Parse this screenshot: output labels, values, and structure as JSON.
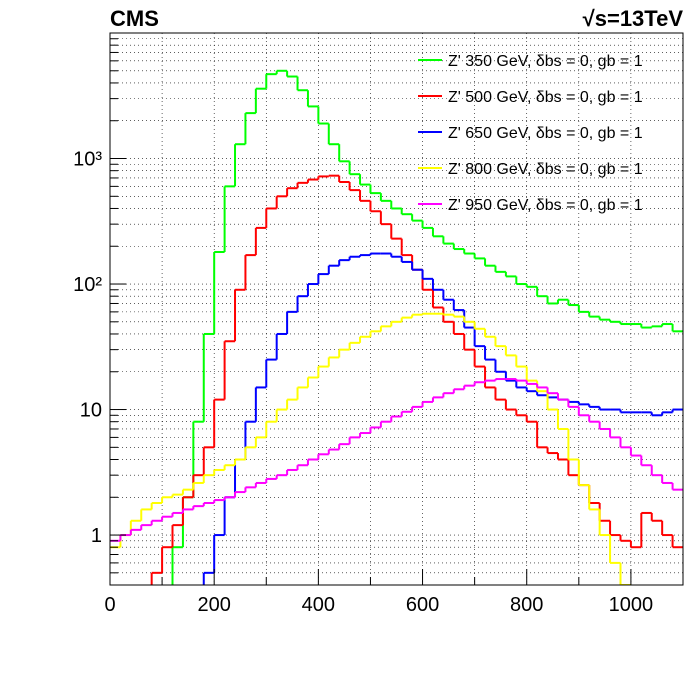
{
  "chart_data": {
    "type": "histogram",
    "title": "CMS",
    "subtitle": "√s=13TeV",
    "log_y": true,
    "grid": true,
    "legend": "upper right",
    "bins": [
      0,
      20,
      40,
      60,
      80,
      100,
      120,
      140,
      160,
      180,
      200,
      220,
      240,
      260,
      280,
      300,
      320,
      340,
      360,
      380,
      400,
      420,
      440,
      460,
      480,
      500,
      520,
      540,
      560,
      580,
      600,
      620,
      640,
      660,
      680,
      700,
      720,
      740,
      760,
      780,
      800,
      820,
      840,
      860,
      880,
      900,
      920,
      940,
      960,
      980,
      1000,
      1020,
      1040,
      1060,
      1080,
      1100
    ],
    "xlim": [
      0,
      1100
    ],
    "xticks": [
      0,
      200,
      400,
      600,
      800,
      1000
    ],
    "xminor_ticks": [
      100,
      300,
      500,
      700,
      900,
      1100
    ],
    "ylim": [
      0.4,
      10000
    ],
    "yticks": [
      1,
      10,
      {
        "value": 100,
        "label": "10²"
      },
      {
        "value": 1000,
        "label": "10³"
      }
    ],
    "yminor_ticks": [
      0.4,
      0.5,
      0.6,
      0.7,
      0.8,
      0.9,
      2,
      3,
      4,
      5,
      6,
      7,
      8,
      9,
      20,
      30,
      40,
      50,
      60,
      70,
      80,
      90,
      200,
      300,
      400,
      500,
      600,
      700,
      800,
      900,
      2000,
      3000,
      4000,
      5000,
      6000,
      7000,
      8000,
      9000
    ],
    "series": [
      {
        "name": "Z' 350 GeV, δbs = 0, gb = 1",
        "color": "#00ff00",
        "values": [
          0,
          0,
          0,
          0,
          0,
          0,
          0.8,
          2,
          8,
          40,
          180,
          600,
          1300,
          2300,
          3600,
          4700,
          5000,
          4500,
          3500,
          2600,
          1900,
          1300,
          950,
          750,
          620,
          530,
          460,
          400,
          360,
          320,
          280,
          240,
          210,
          190,
          175,
          160,
          140,
          125,
          115,
          100,
          95,
          80,
          70,
          75,
          68,
          60,
          55,
          52,
          50,
          48,
          48,
          45,
          46,
          48,
          42
        ]
      },
      {
        "name": "Z' 500 GeV, δbs = 0, gb = 1",
        "color": "#ff0000",
        "values": [
          0,
          0,
          0,
          0,
          0.5,
          0.8,
          1.2,
          2,
          3,
          5,
          12,
          35,
          90,
          170,
          280,
          400,
          500,
          580,
          640,
          680,
          720,
          730,
          650,
          560,
          460,
          380,
          300,
          230,
          170,
          130,
          90,
          65,
          50,
          40,
          30,
          22,
          15,
          12,
          10,
          9,
          8,
          5,
          4.5,
          4,
          3,
          2.5,
          1.8,
          1.3,
          1,
          0.9,
          0.8,
          1.5,
          1.3,
          1,
          0.8
        ]
      },
      {
        "name": "Z' 650 GeV, δbs = 0, gb = 1",
        "color": "#0000ff",
        "values": [
          0,
          0,
          0,
          0,
          0,
          0,
          0,
          0,
          0,
          0.5,
          1,
          2,
          4,
          8,
          15,
          25,
          40,
          60,
          80,
          100,
          120,
          140,
          155,
          165,
          170,
          175,
          175,
          165,
          150,
          130,
          110,
          90,
          75,
          62,
          45,
          32,
          25,
          20,
          17,
          15,
          14,
          13,
          12.5,
          12,
          11.5,
          11,
          10.5,
          10,
          10,
          9.5,
          9.5,
          9.5,
          9,
          9.5,
          10
        ]
      },
      {
        "name": "Z' 800 GeV, δbs = 0, gb = 1",
        "color": "#ffff00",
        "values": [
          0.8,
          1,
          1.3,
          1.6,
          1.8,
          2,
          2.1,
          2.3,
          2.6,
          3,
          3.3,
          3.6,
          4,
          5,
          6,
          8,
          10,
          12,
          15,
          18,
          22,
          26,
          30,
          34,
          38,
          42,
          46,
          50,
          54,
          57,
          58,
          58,
          57,
          55,
          50,
          44,
          38,
          32,
          27,
          22,
          17,
          14,
          10,
          7,
          4,
          2.5,
          1.6,
          1,
          0.6,
          0.4,
          0,
          0,
          0,
          0,
          0
        ]
      },
      {
        "name": "Z' 950 GeV, δbs = 0, gb = 1",
        "color": "#ff00ff",
        "values": [
          0.9,
          1,
          1.1,
          1.2,
          1.3,
          1.4,
          1.5,
          1.6,
          1.7,
          1.8,
          1.9,
          2,
          2.2,
          2.4,
          2.6,
          2.8,
          3,
          3.3,
          3.6,
          4,
          4.4,
          4.8,
          5.3,
          6,
          6.5,
          7.2,
          8,
          8.8,
          9.6,
          10.5,
          11.5,
          12.5,
          13.5,
          14.5,
          15.5,
          16.5,
          17,
          17.5,
          17.5,
          17,
          16,
          15,
          13.5,
          12,
          10.5,
          9,
          8,
          7,
          6,
          5,
          4.3,
          3.6,
          3,
          2.6,
          2.3
        ]
      }
    ]
  }
}
